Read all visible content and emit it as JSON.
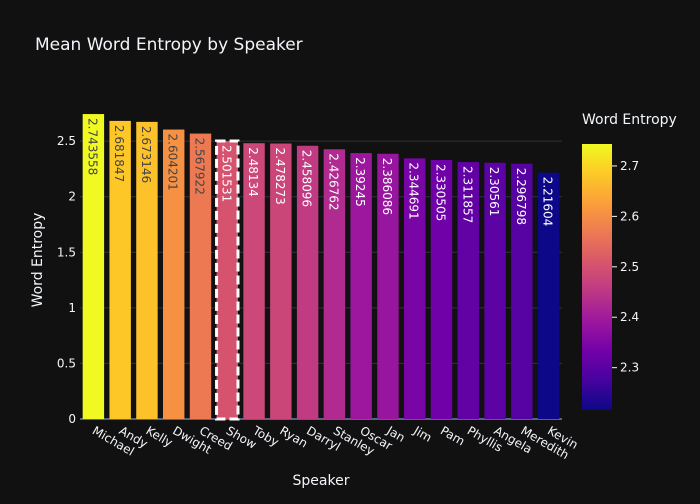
{
  "chart_data": {
    "type": "bar",
    "title": "Mean Word Entropy by Speaker",
    "xlabel": "Speaker",
    "ylabel": "Word Entropy",
    "ylim": [
      0,
      2.78
    ],
    "yticks": [
      0,
      0.5,
      1,
      1.5,
      2,
      2.5
    ],
    "grid": true,
    "categories": [
      "Michael",
      "Andy",
      "Kelly",
      "Dwight",
      "Creed",
      "Show",
      "Toby",
      "Ryan",
      "Darryl",
      "Stanley",
      "Oscar",
      "Jan",
      "Jim",
      "Pam",
      "Phyllis",
      "Angela",
      "Meredith",
      "Kevin"
    ],
    "values": [
      2.743558,
      2.681847,
      2.673146,
      2.604201,
      2.567922,
      2.501531,
      2.48134,
      2.478273,
      2.458096,
      2.426762,
      2.39245,
      2.386086,
      2.344691,
      2.330505,
      2.311857,
      2.30561,
      2.296798,
      2.21604
    ],
    "labels": [
      "2.743558",
      "2.681847",
      "2.673146",
      "2.604201",
      "2.567922",
      "2.501531",
      "2.48134",
      "2.478273",
      "2.458096",
      "2.426762",
      "2.39245",
      "2.386086",
      "2.344691",
      "2.330505",
      "2.311857",
      "2.30561",
      "2.296798",
      "2.21604"
    ],
    "highlight": "Show",
    "colorbar": {
      "title": "Word Entropy",
      "range": [
        2.21604,
        2.743558
      ],
      "ticks": [
        2.3,
        2.4,
        2.5,
        2.6,
        2.7
      ],
      "colorscale": "plasma"
    },
    "colors": {
      "background": "#111111",
      "grid": "#283442",
      "text": "#f2f5fa",
      "highlight_outline": "#ffffff"
    }
  }
}
